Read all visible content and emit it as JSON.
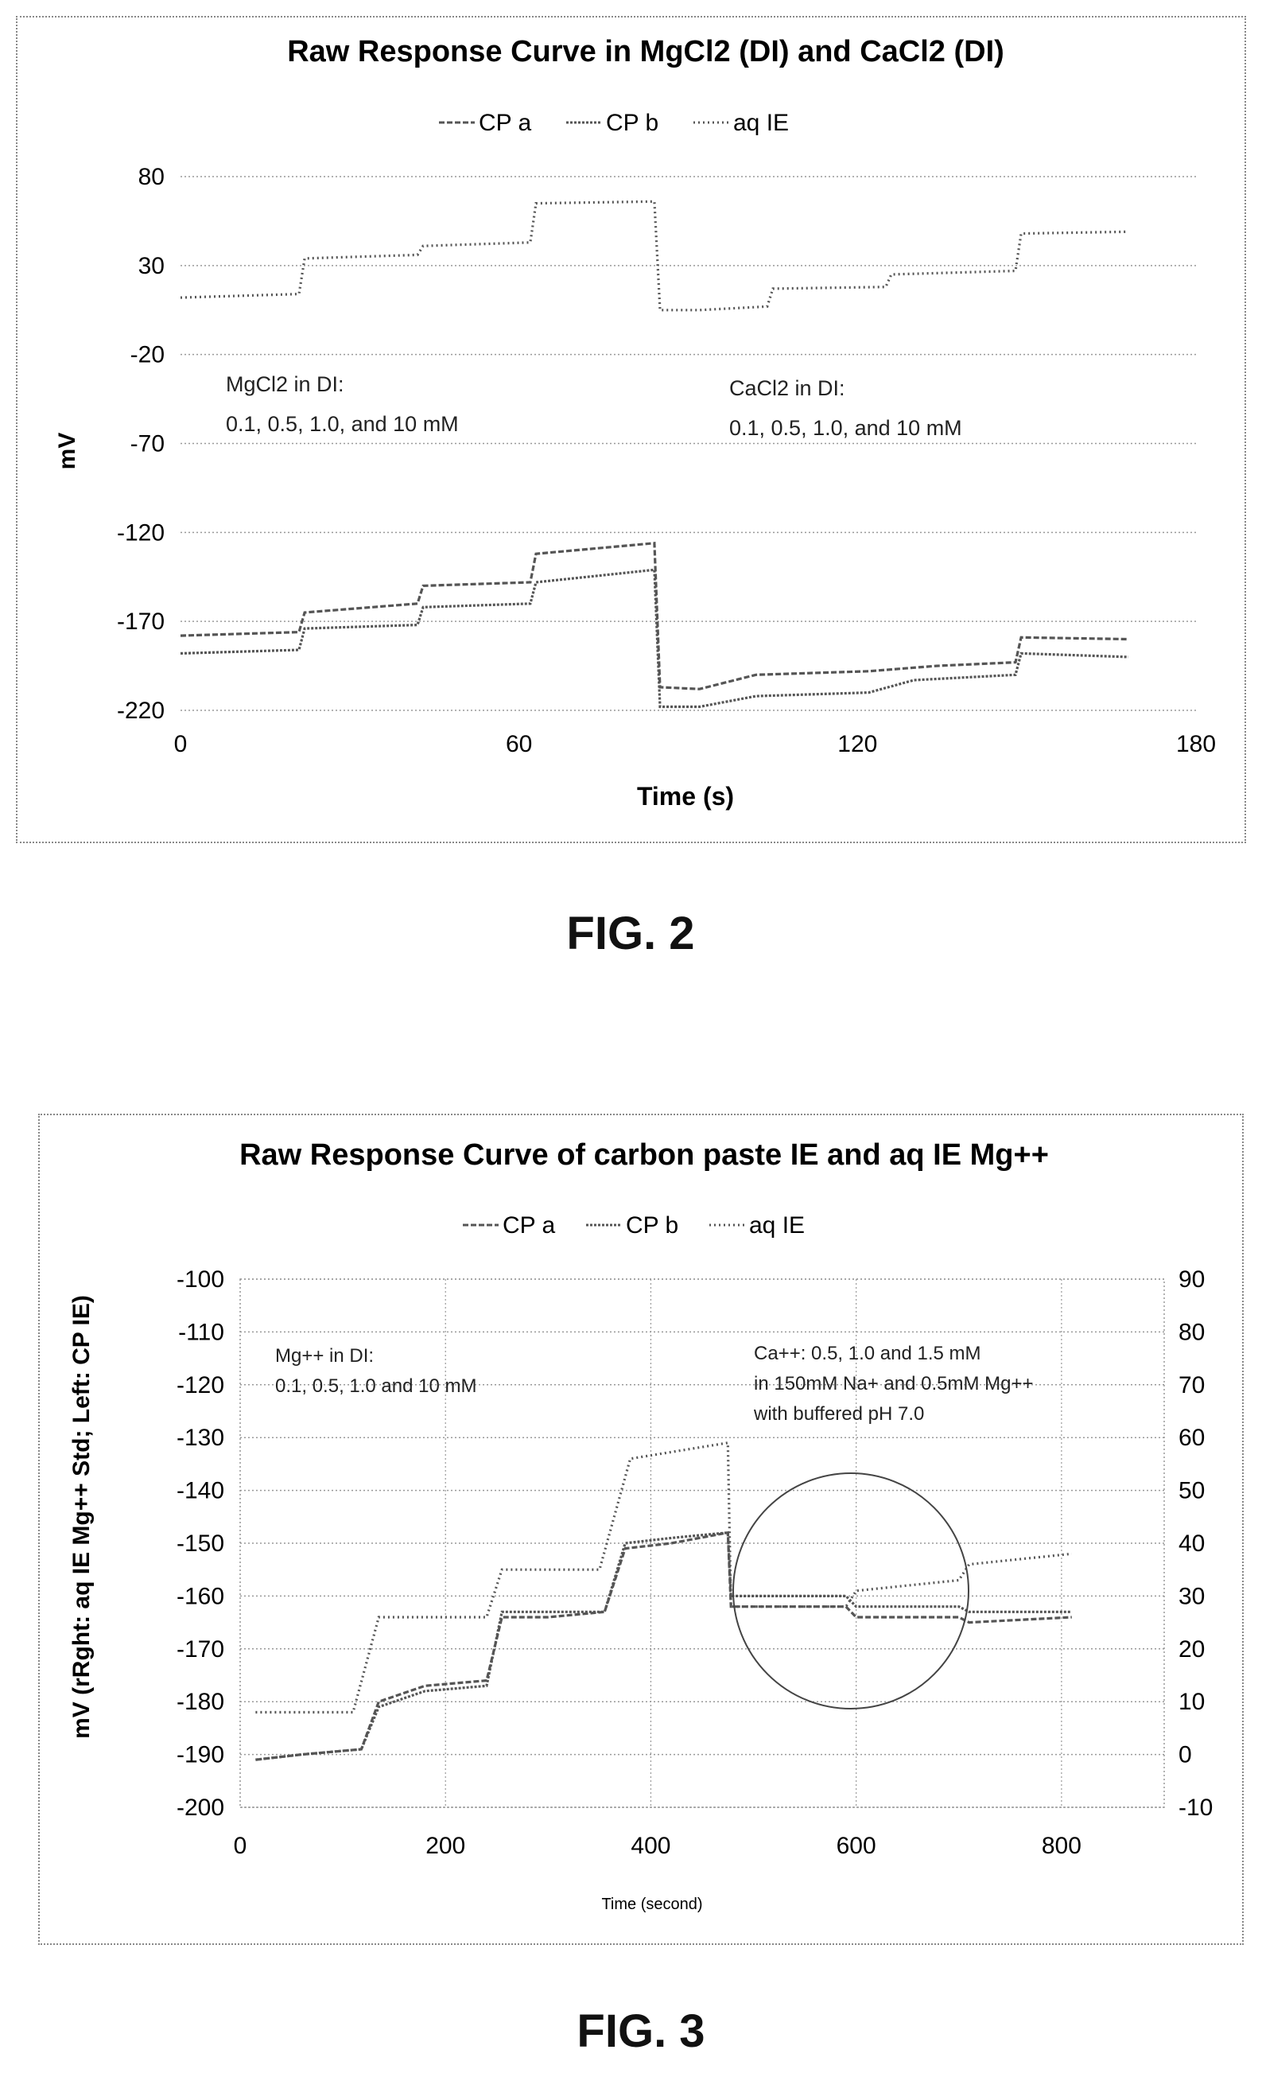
{
  "figures": [
    {
      "label": "FIG. 2"
    },
    {
      "label": "FIG. 3"
    }
  ],
  "colors": {
    "line": "#555555",
    "grid": "#999999",
    "text": "#111111"
  },
  "chart_data": [
    {
      "type": "line",
      "title": "Raw Response Curve in MgCl2 (DI) and CaCl2 (DI)",
      "xlabel": "Time (s)",
      "ylabel": "mV",
      "xlim": [
        0,
        180
      ],
      "ylim": [
        -220,
        80
      ],
      "x_ticks": [
        "0",
        "60",
        "120",
        "180"
      ],
      "y_ticks": [
        "80",
        "30",
        "-20",
        "-70",
        "-120",
        "-170",
        "-220"
      ],
      "legend": [
        "CP a",
        "CP b",
        "aq IE"
      ],
      "legend_position": "top",
      "grid": "horizontal dotted",
      "annotations": [
        {
          "lines": [
            "MgCl2 in DI:",
            "0.1, 0.5, 1.0, and 10 mM"
          ]
        },
        {
          "lines": [
            "CaCl2 in DI:",
            "0.1, 0.5, 1.0, and 10 mM"
          ]
        }
      ],
      "series": [
        {
          "name": "CP a",
          "points": [
            [
              0,
              -178
            ],
            [
              21,
              -176
            ],
            [
              22,
              -165
            ],
            [
              42,
              -160
            ],
            [
              43,
              -150
            ],
            [
              62,
              -148
            ],
            [
              63,
              -132
            ],
            [
              84,
              -126
            ],
            [
              85,
              -207
            ],
            [
              92,
              -208
            ],
            [
              102,
              -200
            ],
            [
              122,
              -198
            ],
            [
              134,
              -195
            ],
            [
              148,
              -193
            ],
            [
              149,
              -179
            ],
            [
              168,
              -180
            ]
          ]
        },
        {
          "name": "CP b",
          "points": [
            [
              0,
              -188
            ],
            [
              21,
              -186
            ],
            [
              22,
              -174
            ],
            [
              42,
              -172
            ],
            [
              43,
              -162
            ],
            [
              62,
              -160
            ],
            [
              63,
              -148
            ],
            [
              84,
              -141
            ],
            [
              85,
              -218
            ],
            [
              92,
              -218
            ],
            [
              102,
              -212
            ],
            [
              122,
              -210
            ],
            [
              130,
              -203
            ],
            [
              148,
              -200
            ],
            [
              149,
              -188
            ],
            [
              168,
              -190
            ]
          ]
        },
        {
          "name": "aq IE",
          "points": [
            [
              0,
              12
            ],
            [
              21,
              14
            ],
            [
              22,
              34
            ],
            [
              42,
              36
            ],
            [
              43,
              41
            ],
            [
              62,
              43
            ],
            [
              63,
              65
            ],
            [
              84,
              66
            ],
            [
              85,
              5
            ],
            [
              92,
              5
            ],
            [
              104,
              7
            ],
            [
              105,
              17
            ],
            [
              125,
              18
            ],
            [
              126,
              25
            ],
            [
              148,
              27
            ],
            [
              149,
              48
            ],
            [
              168,
              49
            ]
          ]
        }
      ]
    },
    {
      "type": "line",
      "title": "Raw Response Curve of carbon paste IE and aq IE Mg++",
      "xlabel": "Time (second)",
      "ylabel": "mV (rRght: aq IE Mg++ Std; Left: CP IE)",
      "xlim": [
        0,
        900
      ],
      "ylim": [
        -200,
        -100
      ],
      "y2lim": [
        -10,
        90
      ],
      "x_ticks": [
        "0",
        "200",
        "400",
        "600",
        "800"
      ],
      "y_ticks": [
        "-100",
        "-110",
        "-120",
        "-130",
        "-140",
        "-150",
        "-160",
        "-170",
        "-180",
        "-190",
        "-200"
      ],
      "y2_ticks": [
        "90",
        "80",
        "70",
        "60",
        "50",
        "40",
        "30",
        "20",
        "10",
        "0",
        "-10"
      ],
      "legend": [
        "CP a",
        "CP b",
        "aq IE"
      ],
      "legend_position": "top",
      "grid": "dotted",
      "annotations": [
        {
          "lines": [
            "Mg++ in DI:",
            "0.1, 0.5, 1.0 and 10 mM"
          ]
        },
        {
          "lines": [
            "Ca++: 0.5, 1.0 and 1.5 mM",
            "in 150mM Na+ and 0.5mM Mg++",
            "with buffered pH 7.0"
          ]
        }
      ],
      "series": [
        {
          "name": "CP a",
          "axis": "left",
          "points": [
            [
              15,
              -191
            ],
            [
              60,
              -190
            ],
            [
              118,
              -189
            ],
            [
              135,
              -180
            ],
            [
              180,
              -177
            ],
            [
              240,
              -176
            ],
            [
              255,
              -164
            ],
            [
              300,
              -164
            ],
            [
              355,
              -163
            ],
            [
              375,
              -151
            ],
            [
              420,
              -150
            ],
            [
              475,
              -148
            ],
            [
              478,
              -162
            ],
            [
              590,
              -162
            ],
            [
              600,
              -164
            ],
            [
              700,
              -164
            ],
            [
              710,
              -165
            ],
            [
              810,
              -164
            ]
          ]
        },
        {
          "name": "CP b",
          "axis": "left",
          "points": [
            [
              15,
              -191
            ],
            [
              60,
              -190
            ],
            [
              118,
              -189
            ],
            [
              135,
              -181
            ],
            [
              180,
              -178
            ],
            [
              240,
              -177
            ],
            [
              255,
              -163
            ],
            [
              300,
              -163
            ],
            [
              355,
              -163
            ],
            [
              375,
              -150
            ],
            [
              420,
              -149
            ],
            [
              475,
              -148
            ],
            [
              478,
              -160
            ],
            [
              590,
              -160
            ],
            [
              600,
              -162
            ],
            [
              700,
              -162
            ],
            [
              710,
              -163
            ],
            [
              810,
              -163
            ]
          ]
        },
        {
          "name": "aq IE",
          "axis": "right",
          "points": [
            [
              15,
              8
            ],
            [
              110,
              8
            ],
            [
              135,
              26
            ],
            [
              240,
              26
            ],
            [
              255,
              35
            ],
            [
              350,
              35
            ],
            [
              380,
              56
            ],
            [
              475,
              59
            ],
            [
              478,
              28
            ],
            [
              590,
              28
            ],
            [
              600,
              31
            ],
            [
              700,
              33
            ],
            [
              710,
              36
            ],
            [
              810,
              38
            ]
          ]
        }
      ]
    }
  ]
}
